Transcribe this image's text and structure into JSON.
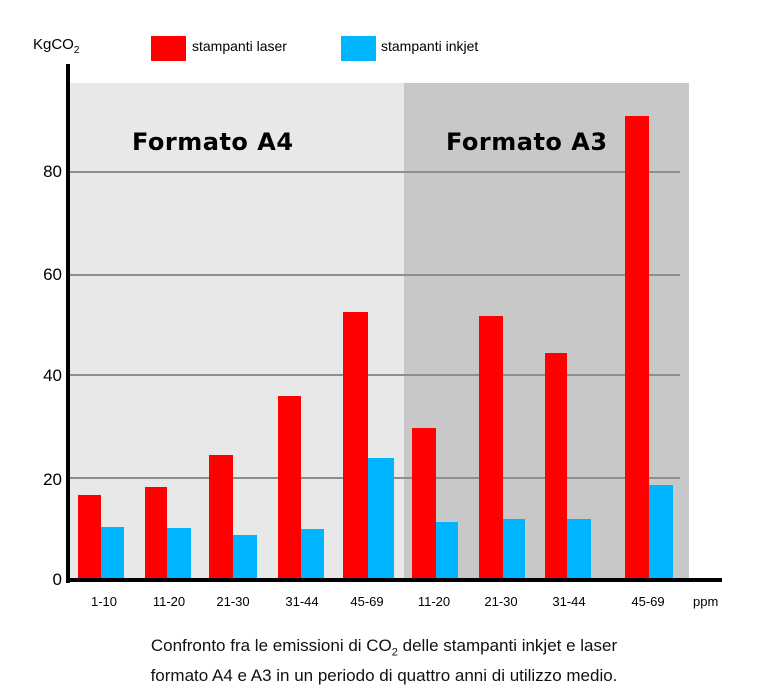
{
  "chart_data": {
    "type": "bar",
    "title": "",
    "ylabel": "KgCO2",
    "xlabel": "ppm",
    "ylim": [
      0,
      95
    ],
    "yticks": [
      0,
      20,
      40,
      60,
      80
    ],
    "grid": true,
    "legend_position": "top",
    "groups": [
      {
        "name": "Formato A4",
        "categories": [
          "1-10",
          "11-20",
          "21-30",
          "31-44",
          "45-69"
        ]
      },
      {
        "name": "Formato A3",
        "categories": [
          "11-20",
          "21-30",
          "31-44",
          "45-69"
        ]
      }
    ],
    "categories": [
      "A4 1-10",
      "A4 11-20",
      "A4 21-30",
      "A4 31-44",
      "A4 45-69",
      "A3 11-20",
      "A3 21-30",
      "A3 31-44",
      "A3 45-69"
    ],
    "series": [
      {
        "name": "stampanti laser",
        "color": "#ff0000",
        "values": [
          16.7,
          18.2,
          24.5,
          36,
          52.5,
          29.8,
          51.8,
          44.5,
          91
        ]
      },
      {
        "name": "stampanti inkjet",
        "color": "#00b4ff",
        "values": [
          10.4,
          10.2,
          8.8,
          10,
          24,
          11.4,
          12,
          12,
          18.6
        ]
      }
    ],
    "caption": "Confronto fra le emissioni di CO2 delle stampanti inkjet e laser formato A4 e A3 in un periodo di quattro anni di utilizzo medio."
  },
  "axis": {
    "ylabel_main": "KgCO",
    "ylabel_sub": "2",
    "unit": "ppm",
    "ticks": [
      "0",
      "20",
      "40",
      "60",
      "80"
    ]
  },
  "legend": {
    "laser": {
      "label": "stampanti laser",
      "color": "#ff0000"
    },
    "inkjet": {
      "label": "stampanti inkjet",
      "color": "#00b4ff"
    }
  },
  "panels": {
    "a4": {
      "title": "Formato A4",
      "bg": "#e8e8e8"
    },
    "a3": {
      "title": "Formato A3",
      "bg": "#c8c8c8"
    }
  },
  "xticks": [
    "1-10",
    "11-20",
    "21-30",
    "31-44",
    "45-69",
    "11-20",
    "21-30",
    "31-44",
    "45-69"
  ],
  "caption": {
    "line1_a": "Confronto fra le emissioni di CO",
    "line1_sub": "2",
    "line1_b": " delle stampanti inkjet e laser",
    "line2": "formato A4 e A3 in un periodo di quattro anni di utilizzo medio."
  }
}
